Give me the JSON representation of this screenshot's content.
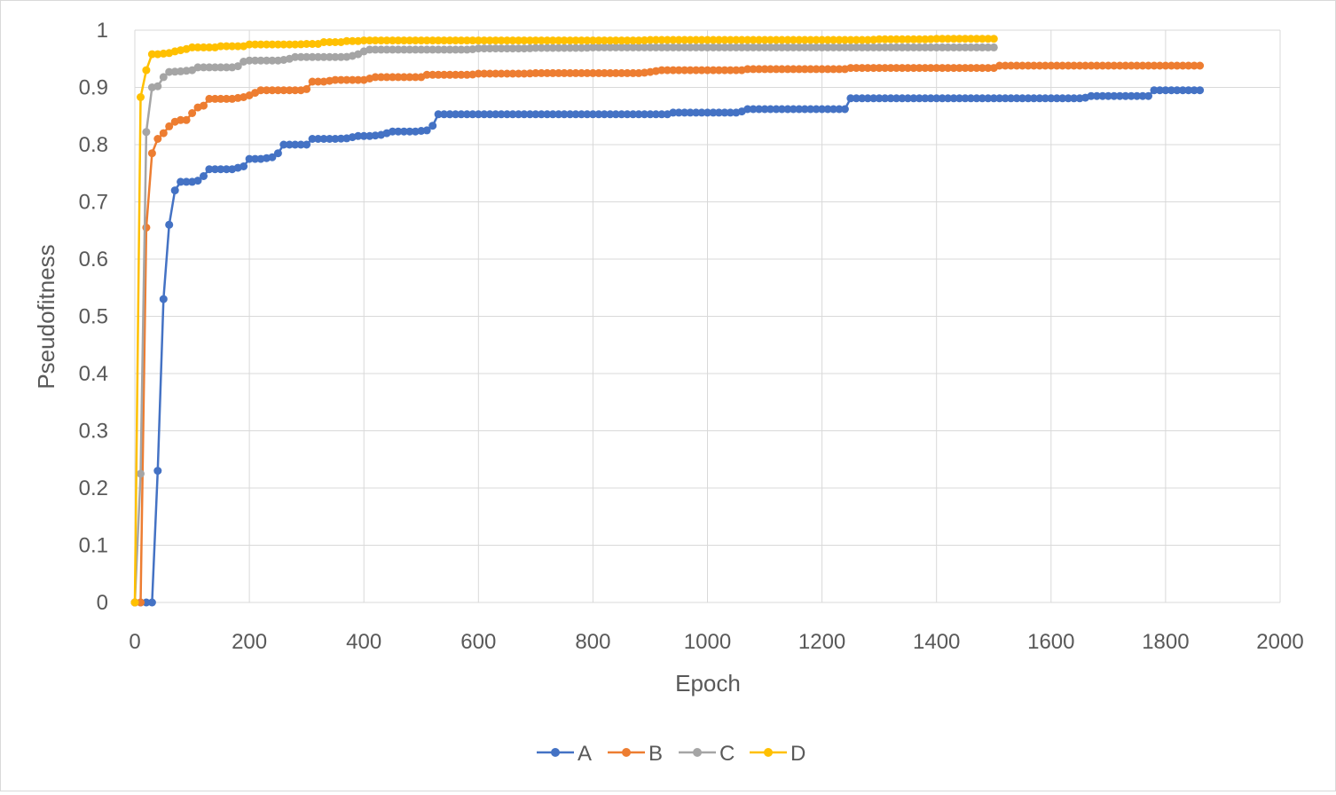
{
  "chart_data": {
    "type": "line",
    "title": "",
    "xlabel": "Epoch",
    "ylabel": "Pseudofitness",
    "xlim": [
      0,
      2000
    ],
    "ylim": [
      0,
      1
    ],
    "x_ticks": [
      "0",
      "200",
      "400",
      "600",
      "800",
      "1000",
      "1200",
      "1400",
      "1600",
      "1800",
      "2000"
    ],
    "y_ticks": [
      "0",
      "0.1",
      "0.2",
      "0.3",
      "0.4",
      "0.5",
      "0.6",
      "0.7",
      "0.8",
      "0.9",
      "1"
    ],
    "grid": true,
    "legend_position": "bottom",
    "series": [
      {
        "name": "A",
        "color": "#4472c4",
        "points": [
          [
            0,
            0
          ],
          [
            10,
            0
          ],
          [
            20,
            0
          ],
          [
            30,
            0
          ],
          [
            40,
            0.23
          ],
          [
            50,
            0.53
          ],
          [
            60,
            0.66
          ],
          [
            70,
            0.72
          ],
          [
            80,
            0.735
          ],
          [
            90,
            0.735
          ],
          [
            100,
            0.735
          ],
          [
            110,
            0.737
          ],
          [
            120,
            0.745
          ],
          [
            130,
            0.757
          ],
          [
            150,
            0.757
          ],
          [
            170,
            0.757
          ],
          [
            190,
            0.762
          ],
          [
            200,
            0.775
          ],
          [
            220,
            0.775
          ],
          [
            240,
            0.778
          ],
          [
            250,
            0.785
          ],
          [
            260,
            0.8
          ],
          [
            280,
            0.8
          ],
          [
            300,
            0.8
          ],
          [
            310,
            0.81
          ],
          [
            330,
            0.81
          ],
          [
            350,
            0.81
          ],
          [
            370,
            0.811
          ],
          [
            390,
            0.815
          ],
          [
            410,
            0.815
          ],
          [
            430,
            0.817
          ],
          [
            450,
            0.823
          ],
          [
            470,
            0.823
          ],
          [
            490,
            0.823
          ],
          [
            510,
            0.825
          ],
          [
            520,
            0.833
          ],
          [
            530,
            0.853
          ],
          [
            560,
            0.853
          ],
          [
            600,
            0.853
          ],
          [
            700,
            0.853
          ],
          [
            800,
            0.853
          ],
          [
            900,
            0.853
          ],
          [
            940,
            0.856
          ],
          [
            1000,
            0.856
          ],
          [
            1060,
            0.858
          ],
          [
            1070,
            0.862
          ],
          [
            1150,
            0.862
          ],
          [
            1240,
            0.862
          ],
          [
            1250,
            0.881
          ],
          [
            1300,
            0.881
          ],
          [
            1400,
            0.881
          ],
          [
            1500,
            0.881
          ],
          [
            1600,
            0.881
          ],
          [
            1660,
            0.882
          ],
          [
            1670,
            0.885
          ],
          [
            1770,
            0.885
          ],
          [
            1780,
            0.895
          ],
          [
            1860,
            0.895
          ]
        ]
      },
      {
        "name": "B",
        "color": "#ed7d31",
        "points": [
          [
            0,
            0
          ],
          [
            10,
            0
          ],
          [
            20,
            0.655
          ],
          [
            30,
            0.785
          ],
          [
            40,
            0.81
          ],
          [
            50,
            0.82
          ],
          [
            60,
            0.832
          ],
          [
            70,
            0.84
          ],
          [
            80,
            0.843
          ],
          [
            90,
            0.843
          ],
          [
            100,
            0.855
          ],
          [
            110,
            0.865
          ],
          [
            120,
            0.868
          ],
          [
            130,
            0.88
          ],
          [
            150,
            0.88
          ],
          [
            170,
            0.88
          ],
          [
            190,
            0.883
          ],
          [
            200,
            0.886
          ],
          [
            220,
            0.895
          ],
          [
            260,
            0.895
          ],
          [
            300,
            0.897
          ],
          [
            310,
            0.91
          ],
          [
            330,
            0.91
          ],
          [
            350,
            0.913
          ],
          [
            400,
            0.913
          ],
          [
            420,
            0.918
          ],
          [
            480,
            0.918
          ],
          [
            510,
            0.922
          ],
          [
            600,
            0.924
          ],
          [
            700,
            0.925
          ],
          [
            800,
            0.925
          ],
          [
            900,
            0.927
          ],
          [
            920,
            0.93
          ],
          [
            1000,
            0.93
          ],
          [
            1060,
            0.93
          ],
          [
            1070,
            0.932
          ],
          [
            1200,
            0.932
          ],
          [
            1250,
            0.934
          ],
          [
            1400,
            0.934
          ],
          [
            1500,
            0.934
          ],
          [
            1510,
            0.938
          ],
          [
            1600,
            0.938
          ],
          [
            1700,
            0.938
          ],
          [
            1800,
            0.938
          ],
          [
            1860,
            0.938
          ]
        ]
      },
      {
        "name": "C",
        "color": "#a5a5a5",
        "points": [
          [
            0,
            0
          ],
          [
            10,
            0.225
          ],
          [
            20,
            0.822
          ],
          [
            30,
            0.9
          ],
          [
            40,
            0.902
          ],
          [
            50,
            0.918
          ],
          [
            60,
            0.927
          ],
          [
            80,
            0.928
          ],
          [
            100,
            0.93
          ],
          [
            110,
            0.935
          ],
          [
            150,
            0.935
          ],
          [
            180,
            0.937
          ],
          [
            190,
            0.945
          ],
          [
            200,
            0.947
          ],
          [
            260,
            0.948
          ],
          [
            270,
            0.95
          ],
          [
            280,
            0.953
          ],
          [
            300,
            0.953
          ],
          [
            380,
            0.955
          ],
          [
            390,
            0.958
          ],
          [
            400,
            0.963
          ],
          [
            410,
            0.966
          ],
          [
            500,
            0.966
          ],
          [
            600,
            0.968
          ],
          [
            700,
            0.969
          ],
          [
            800,
            0.97
          ],
          [
            900,
            0.97
          ],
          [
            1000,
            0.97
          ],
          [
            1100,
            0.97
          ],
          [
            1200,
            0.97
          ],
          [
            1300,
            0.97
          ],
          [
            1400,
            0.97
          ],
          [
            1500,
            0.97
          ]
        ]
      },
      {
        "name": "D",
        "color": "#ffc000",
        "points": [
          [
            0,
            0
          ],
          [
            10,
            0.883
          ],
          [
            20,
            0.93
          ],
          [
            30,
            0.958
          ],
          [
            40,
            0.958
          ],
          [
            60,
            0.96
          ],
          [
            70,
            0.963
          ],
          [
            90,
            0.967
          ],
          [
            100,
            0.97
          ],
          [
            150,
            0.972
          ],
          [
            200,
            0.975
          ],
          [
            300,
            0.976
          ],
          [
            330,
            0.979
          ],
          [
            370,
            0.981
          ],
          [
            400,
            0.982
          ],
          [
            500,
            0.982
          ],
          [
            600,
            0.982
          ],
          [
            700,
            0.982
          ],
          [
            800,
            0.982
          ],
          [
            900,
            0.983
          ],
          [
            1000,
            0.983
          ],
          [
            1100,
            0.983
          ],
          [
            1200,
            0.983
          ],
          [
            1300,
            0.984
          ],
          [
            1400,
            0.985
          ],
          [
            1500,
            0.985
          ]
        ]
      }
    ]
  }
}
